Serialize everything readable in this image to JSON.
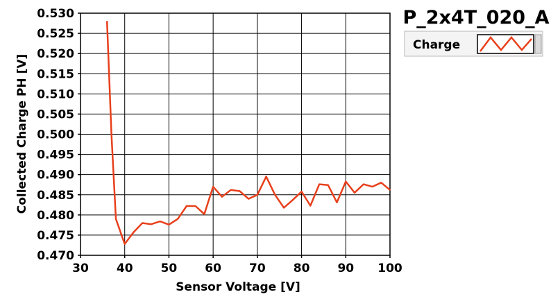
{
  "chart_data": {
    "type": "line",
    "title": "P_2x4T_020_A",
    "xlabel": "Sensor Voltage [V]",
    "ylabel": "Collected Charge PH [V]",
    "xlim": [
      30,
      100
    ],
    "ylim": [
      0.47,
      0.53
    ],
    "x_ticks": [
      "30",
      "40",
      "50",
      "60",
      "70",
      "80",
      "90",
      "100"
    ],
    "y_ticks": [
      "0.470",
      "0.475",
      "0.480",
      "0.485",
      "0.490",
      "0.495",
      "0.500",
      "0.505",
      "0.510",
      "0.515",
      "0.520",
      "0.525",
      "0.530"
    ],
    "grid": true,
    "legend_position": "top-right",
    "series": [
      {
        "name": "Charge",
        "color": "#e8401c",
        "x": [
          36,
          37,
          38,
          40,
          42,
          44,
          46,
          48,
          50,
          52,
          54,
          56,
          58,
          60,
          62,
          64,
          66,
          68,
          70,
          72,
          74,
          76,
          78,
          80,
          82,
          84,
          86,
          88,
          90,
          92,
          94,
          96,
          98,
          100
        ],
        "y": [
          0.528,
          0.5,
          0.479,
          0.4728,
          0.4757,
          0.478,
          0.4777,
          0.4784,
          0.4776,
          0.479,
          0.4822,
          0.4822,
          0.4802,
          0.487,
          0.4845,
          0.4862,
          0.4859,
          0.484,
          0.485,
          0.4895,
          0.485,
          0.4818,
          0.4837,
          0.4858,
          0.4823,
          0.4876,
          0.4874,
          0.4831,
          0.4883,
          0.4855,
          0.4876,
          0.487,
          0.488,
          0.4862
        ]
      }
    ]
  }
}
